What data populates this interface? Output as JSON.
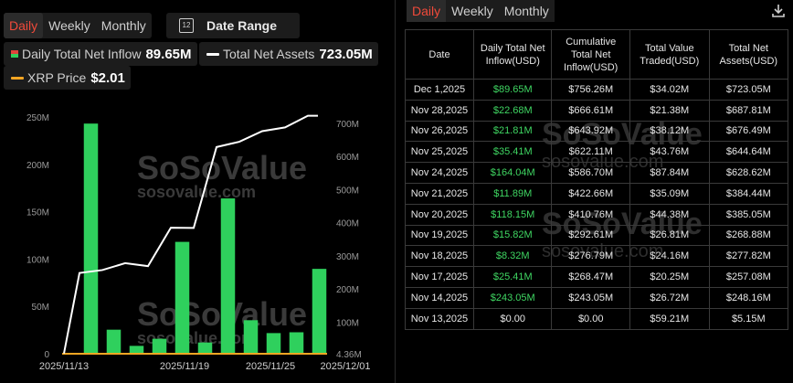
{
  "left_tabs": [
    "Daily",
    "Weekly",
    "Monthly"
  ],
  "active_tab": "Daily",
  "date_range": {
    "icon_text": "12",
    "label": "Date Range"
  },
  "metrics": {
    "inflow": {
      "label": "Daily Total Net Inflow",
      "value": "89.65M"
    },
    "assets": {
      "label": "Total Net Assets",
      "value": "723.05M"
    },
    "price": {
      "label": "XRP Price",
      "value": "$2.01"
    }
  },
  "watermark": {
    "brand": "SoSoValue",
    "url": "sosovalue.com"
  },
  "chart_data": {
    "type": "bar",
    "categories": [
      "2025/11/13",
      "2025/11/14",
      "2025/11/17",
      "2025/11/18",
      "2025/11/19",
      "2025/11/20",
      "2025/11/21",
      "2025/11/24",
      "2025/11/25",
      "2025/11/26",
      "2025/11/28",
      "2025/12/01"
    ],
    "series": [
      {
        "name": "Daily Total Net Inflow",
        "type": "bar",
        "axis": "left",
        "values": [
          0,
          243.05,
          25.41,
          8.32,
          15.82,
          118.15,
          11.89,
          164.04,
          35.41,
          21.81,
          22.68,
          89.65
        ]
      },
      {
        "name": "Total Net Assets",
        "type": "line",
        "axis": "right",
        "values": [
          5.15,
          248.16,
          257.08,
          277.82,
          268.88,
          385.05,
          384.44,
          628.62,
          644.64,
          676.49,
          687.81,
          723.05
        ]
      }
    ],
    "x_tick_labels": [
      "2025/11/13",
      "2025/11/19",
      "2025/11/25",
      "2025/12/01"
    ],
    "y_left": {
      "ticks": [
        "0",
        "50M",
        "100M",
        "150M",
        "200M",
        "250M"
      ],
      "lim": [
        0,
        250
      ]
    },
    "y_right": {
      "ticks": [
        "4.36M",
        "100M",
        "200M",
        "300M",
        "400M",
        "500M",
        "600M",
        "700M"
      ],
      "lim": [
        4.36,
        700
      ]
    },
    "colors": {
      "bar": "#2fd05d",
      "line": "#ffffff",
      "price": "#f5a623"
    }
  },
  "right_tabs": [
    "Daily",
    "Weekly",
    "Monthly"
  ],
  "right_active_tab": "Daily",
  "download_icon": "download-icon",
  "table": {
    "headers": [
      "Date",
      "Daily Total Net Inflow(USD)",
      "Cumulative Total Net Inflow(USD)",
      "Total Value Traded(USD)",
      "Total Net Assets(USD)"
    ],
    "rows": [
      [
        "Dec 1,2025",
        "$89.65M",
        "$756.26M",
        "$34.02M",
        "$723.05M"
      ],
      [
        "Nov 28,2025",
        "$22.68M",
        "$666.61M",
        "$21.38M",
        "$687.81M"
      ],
      [
        "Nov 26,2025",
        "$21.81M",
        "$643.92M",
        "$38.12M",
        "$676.49M"
      ],
      [
        "Nov 25,2025",
        "$35.41M",
        "$622.11M",
        "$43.76M",
        "$644.64M"
      ],
      [
        "Nov 24,2025",
        "$164.04M",
        "$586.70M",
        "$87.84M",
        "$628.62M"
      ],
      [
        "Nov 21,2025",
        "$11.89M",
        "$422.66M",
        "$35.09M",
        "$384.44M"
      ],
      [
        "Nov 20,2025",
        "$118.15M",
        "$410.76M",
        "$44.38M",
        "$385.05M"
      ],
      [
        "Nov 19,2025",
        "$15.82M",
        "$292.61M",
        "$26.81M",
        "$268.88M"
      ],
      [
        "Nov 18,2025",
        "$8.32M",
        "$276.79M",
        "$24.16M",
        "$277.82M"
      ],
      [
        "Nov 17,2025",
        "$25.41M",
        "$268.47M",
        "$20.25M",
        "$257.08M"
      ],
      [
        "Nov 14,2025",
        "$243.05M",
        "$243.05M",
        "$26.72M",
        "$248.16M"
      ],
      [
        "Nov 13,2025",
        "$0.00",
        "$0.00",
        "$59.21M",
        "$5.15M"
      ]
    ],
    "positive_rows": [
      0,
      1,
      2,
      3,
      4,
      5,
      6,
      7,
      8,
      9,
      10
    ]
  }
}
